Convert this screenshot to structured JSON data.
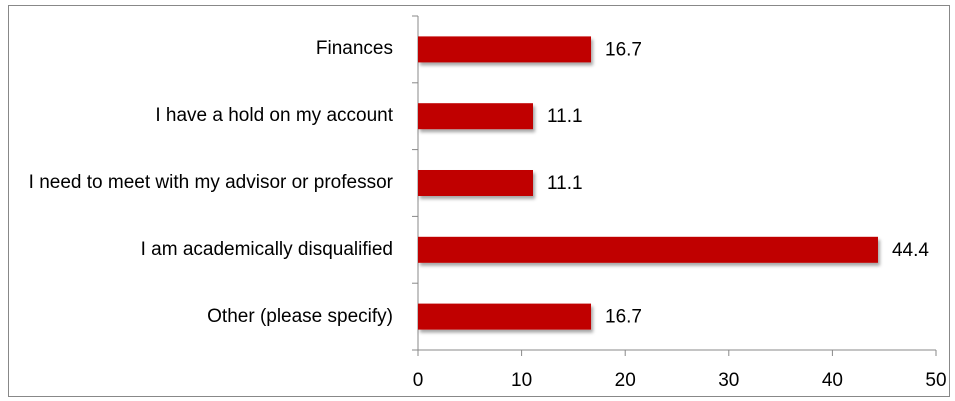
{
  "chart_data": {
    "type": "bar",
    "orientation": "horizontal",
    "categories": [
      "Finances",
      "I have a hold on my account",
      "I need to meet with my advisor or professor",
      "I am academically disqualified",
      "Other (please specify)"
    ],
    "values": [
      16.7,
      11.1,
      11.1,
      44.4,
      16.7
    ],
    "color": "#c00000",
    "xlim": [
      0,
      50
    ],
    "xticks": [
      0,
      10,
      20,
      30,
      40,
      50
    ],
    "grid": false
  }
}
